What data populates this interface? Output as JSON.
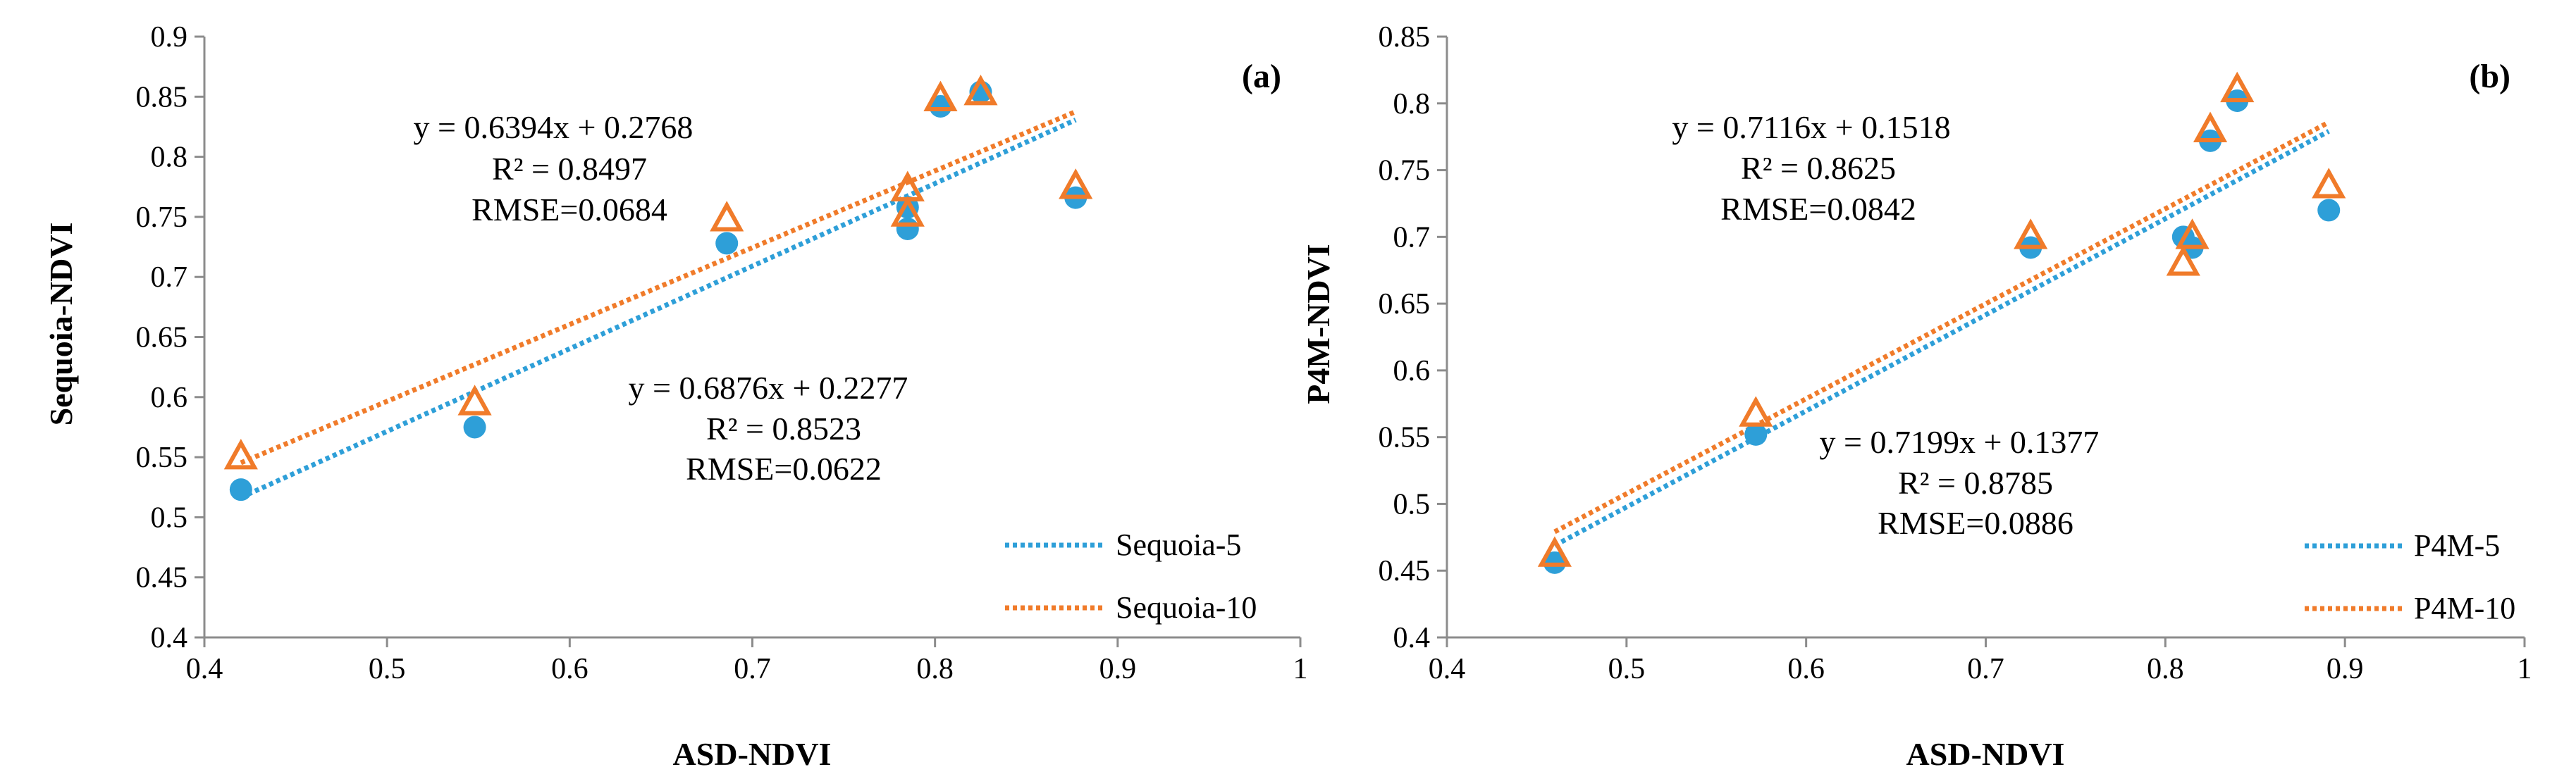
{
  "colors": {
    "series5": "#2e9fd8",
    "series10": "#f07b2a",
    "axis": "#8c8c8c"
  },
  "chart_data": [
    {
      "type": "scatter",
      "panel_label": "(a)",
      "xlabel": "ASD-NDVI",
      "ylabel": "Sequoia-NDVI",
      "xlim": [
        0.4,
        1
      ],
      "ylim": [
        0.4,
        0.9
      ],
      "xticks": [
        0.4,
        0.5,
        0.6,
        0.7,
        0.8,
        0.9,
        1
      ],
      "xtick_labels": [
        "0.4",
        "0.5",
        "0.6",
        "0.7",
        "0.8",
        "0.9",
        "1"
      ],
      "yticks": [
        0.4,
        0.45,
        0.5,
        0.55,
        0.6,
        0.65,
        0.7,
        0.75,
        0.8,
        0.85,
        0.9
      ],
      "ytick_labels": [
        "0.4",
        "0.45",
        "0.5",
        "0.55",
        "0.6",
        "0.65",
        "0.7",
        "0.75",
        "0.8",
        "0.85",
        "0.9"
      ],
      "grid": false,
      "legend_position": "bottom-right",
      "series": [
        {
          "name": "Sequoia-5",
          "marker": "circle",
          "x": [
            0.42,
            0.548,
            0.686,
            0.785,
            0.785,
            0.803,
            0.825,
            0.877
          ],
          "y": [
            0.523,
            0.575,
            0.728,
            0.74,
            0.758,
            0.842,
            0.854,
            0.766
          ],
          "trendline": {
            "slope": 0.6876,
            "intercept": 0.2277,
            "equation": "y = 0.6876x + 0.2277",
            "r2": "R² = 0.8523",
            "rmse": "RMSE=0.0622"
          }
        },
        {
          "name": "Sequoia-10",
          "marker": "triangle",
          "x": [
            0.42,
            0.548,
            0.686,
            0.785,
            0.785,
            0.803,
            0.825,
            0.877
          ],
          "y": [
            0.55,
            0.595,
            0.748,
            0.752,
            0.773,
            0.848,
            0.853,
            0.775
          ],
          "trendline": {
            "slope": 0.6394,
            "intercept": 0.2768,
            "equation": "y = 0.6394x + 0.2768",
            "r2": "R² = 0.8497",
            "rmse": "RMSE=0.0684"
          }
        }
      ]
    },
    {
      "type": "scatter",
      "panel_label": "(b)",
      "xlabel": "ASD-NDVI",
      "ylabel": "P4M-NDVI",
      "xlim": [
        0.4,
        1
      ],
      "ylim": [
        0.4,
        0.85
      ],
      "xticks": [
        0.4,
        0.5,
        0.6,
        0.7,
        0.8,
        0.9,
        1
      ],
      "xtick_labels": [
        "0.4",
        "0.5",
        "0.6",
        "0.7",
        "0.8",
        "0.9",
        "1"
      ],
      "yticks": [
        0.4,
        0.45,
        0.5,
        0.55,
        0.6,
        0.65,
        0.7,
        0.75,
        0.8,
        0.85
      ],
      "ytick_labels": [
        "0.4",
        "0.45",
        "0.5",
        "0.55",
        "0.6",
        "0.65",
        "0.7",
        "0.75",
        "0.8",
        "0.85"
      ],
      "grid": false,
      "legend_position": "bottom-right",
      "series": [
        {
          "name": "P4M-5",
          "marker": "circle",
          "x": [
            0.46,
            0.572,
            0.725,
            0.81,
            0.815,
            0.825,
            0.84,
            0.891
          ],
          "y": [
            0.456,
            0.552,
            0.692,
            0.7,
            0.692,
            0.772,
            0.802,
            0.72
          ],
          "trendline": {
            "slope": 0.7199,
            "intercept": 0.1377,
            "equation": "y = 0.7199x + 0.1377",
            "r2": "R² = 0.8785",
            "rmse": "RMSE=0.0886"
          }
        },
        {
          "name": "P4M-10",
          "marker": "triangle",
          "x": [
            0.46,
            0.572,
            0.725,
            0.81,
            0.815,
            0.825,
            0.84,
            0.891
          ],
          "y": [
            0.462,
            0.567,
            0.7,
            0.68,
            0.7,
            0.78,
            0.81,
            0.738
          ],
          "trendline": {
            "slope": 0.7116,
            "intercept": 0.1518,
            "equation": "y = 0.7116x + 0.1518",
            "r2": "R² = 0.8625",
            "rmse": "RMSE=0.0842"
          }
        }
      ]
    }
  ]
}
